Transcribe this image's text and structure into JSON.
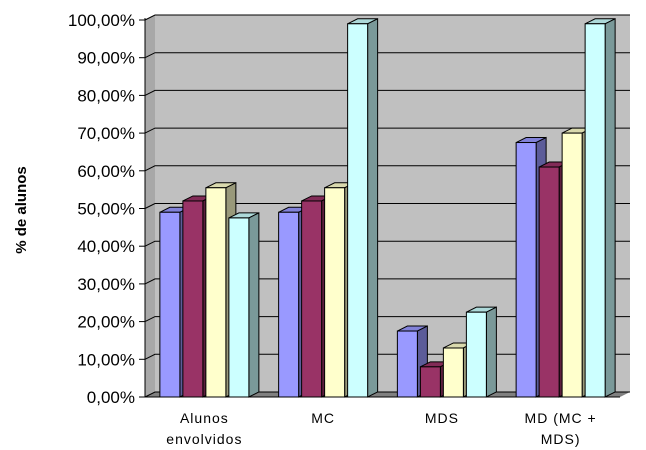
{
  "chart_data": {
    "type": "bar",
    "style": "3d-clustered",
    "ylabel": "% de alunos",
    "xlabel": "",
    "title": "",
    "ylim": [
      0,
      100
    ],
    "yticks": [
      "0,00%",
      "10,00%",
      "20,00%",
      "30,00%",
      "40,00%",
      "50,00%",
      "60,00%",
      "70,00%",
      "80,00%",
      "90,00%",
      "100,00%"
    ],
    "categories": [
      [
        "Alunos",
        "envolvidos"
      ],
      [
        "MC"
      ],
      [
        "MDS"
      ],
      [
        "MD (MC +",
        "MDS)"
      ]
    ],
    "series": [
      {
        "color": "#9999ff",
        "values": [
          49,
          49,
          17.5,
          67.5
        ]
      },
      {
        "color": "#993366",
        "values": [
          52,
          52,
          8,
          61
        ]
      },
      {
        "color": "#ffffcc",
        "values": [
          55.5,
          55.5,
          13,
          70
        ]
      },
      {
        "color": "#ccffff",
        "values": [
          47.5,
          99,
          22.5,
          99
        ]
      }
    ],
    "grid": true,
    "legend": "none",
    "plot_background": "#c0c0c0"
  }
}
